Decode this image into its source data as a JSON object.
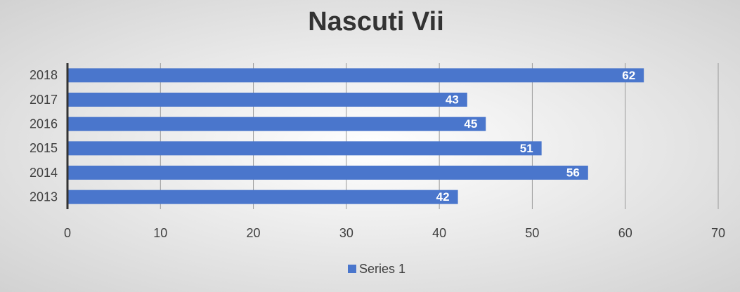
{
  "chart_data": {
    "type": "bar",
    "orientation": "horizontal",
    "title": "Nascuti Vii",
    "categories": [
      "2013",
      "2014",
      "2015",
      "2016",
      "2017",
      "2018"
    ],
    "series": [
      {
        "name": "Series 1",
        "color": "#4a76cc",
        "values": [
          42,
          56,
          51,
          45,
          43,
          62
        ]
      }
    ],
    "xlim": [
      0,
      70
    ],
    "xticks": [
      0,
      10,
      20,
      30,
      40,
      50,
      60,
      70
    ],
    "grid": true,
    "legend": "bottom"
  }
}
